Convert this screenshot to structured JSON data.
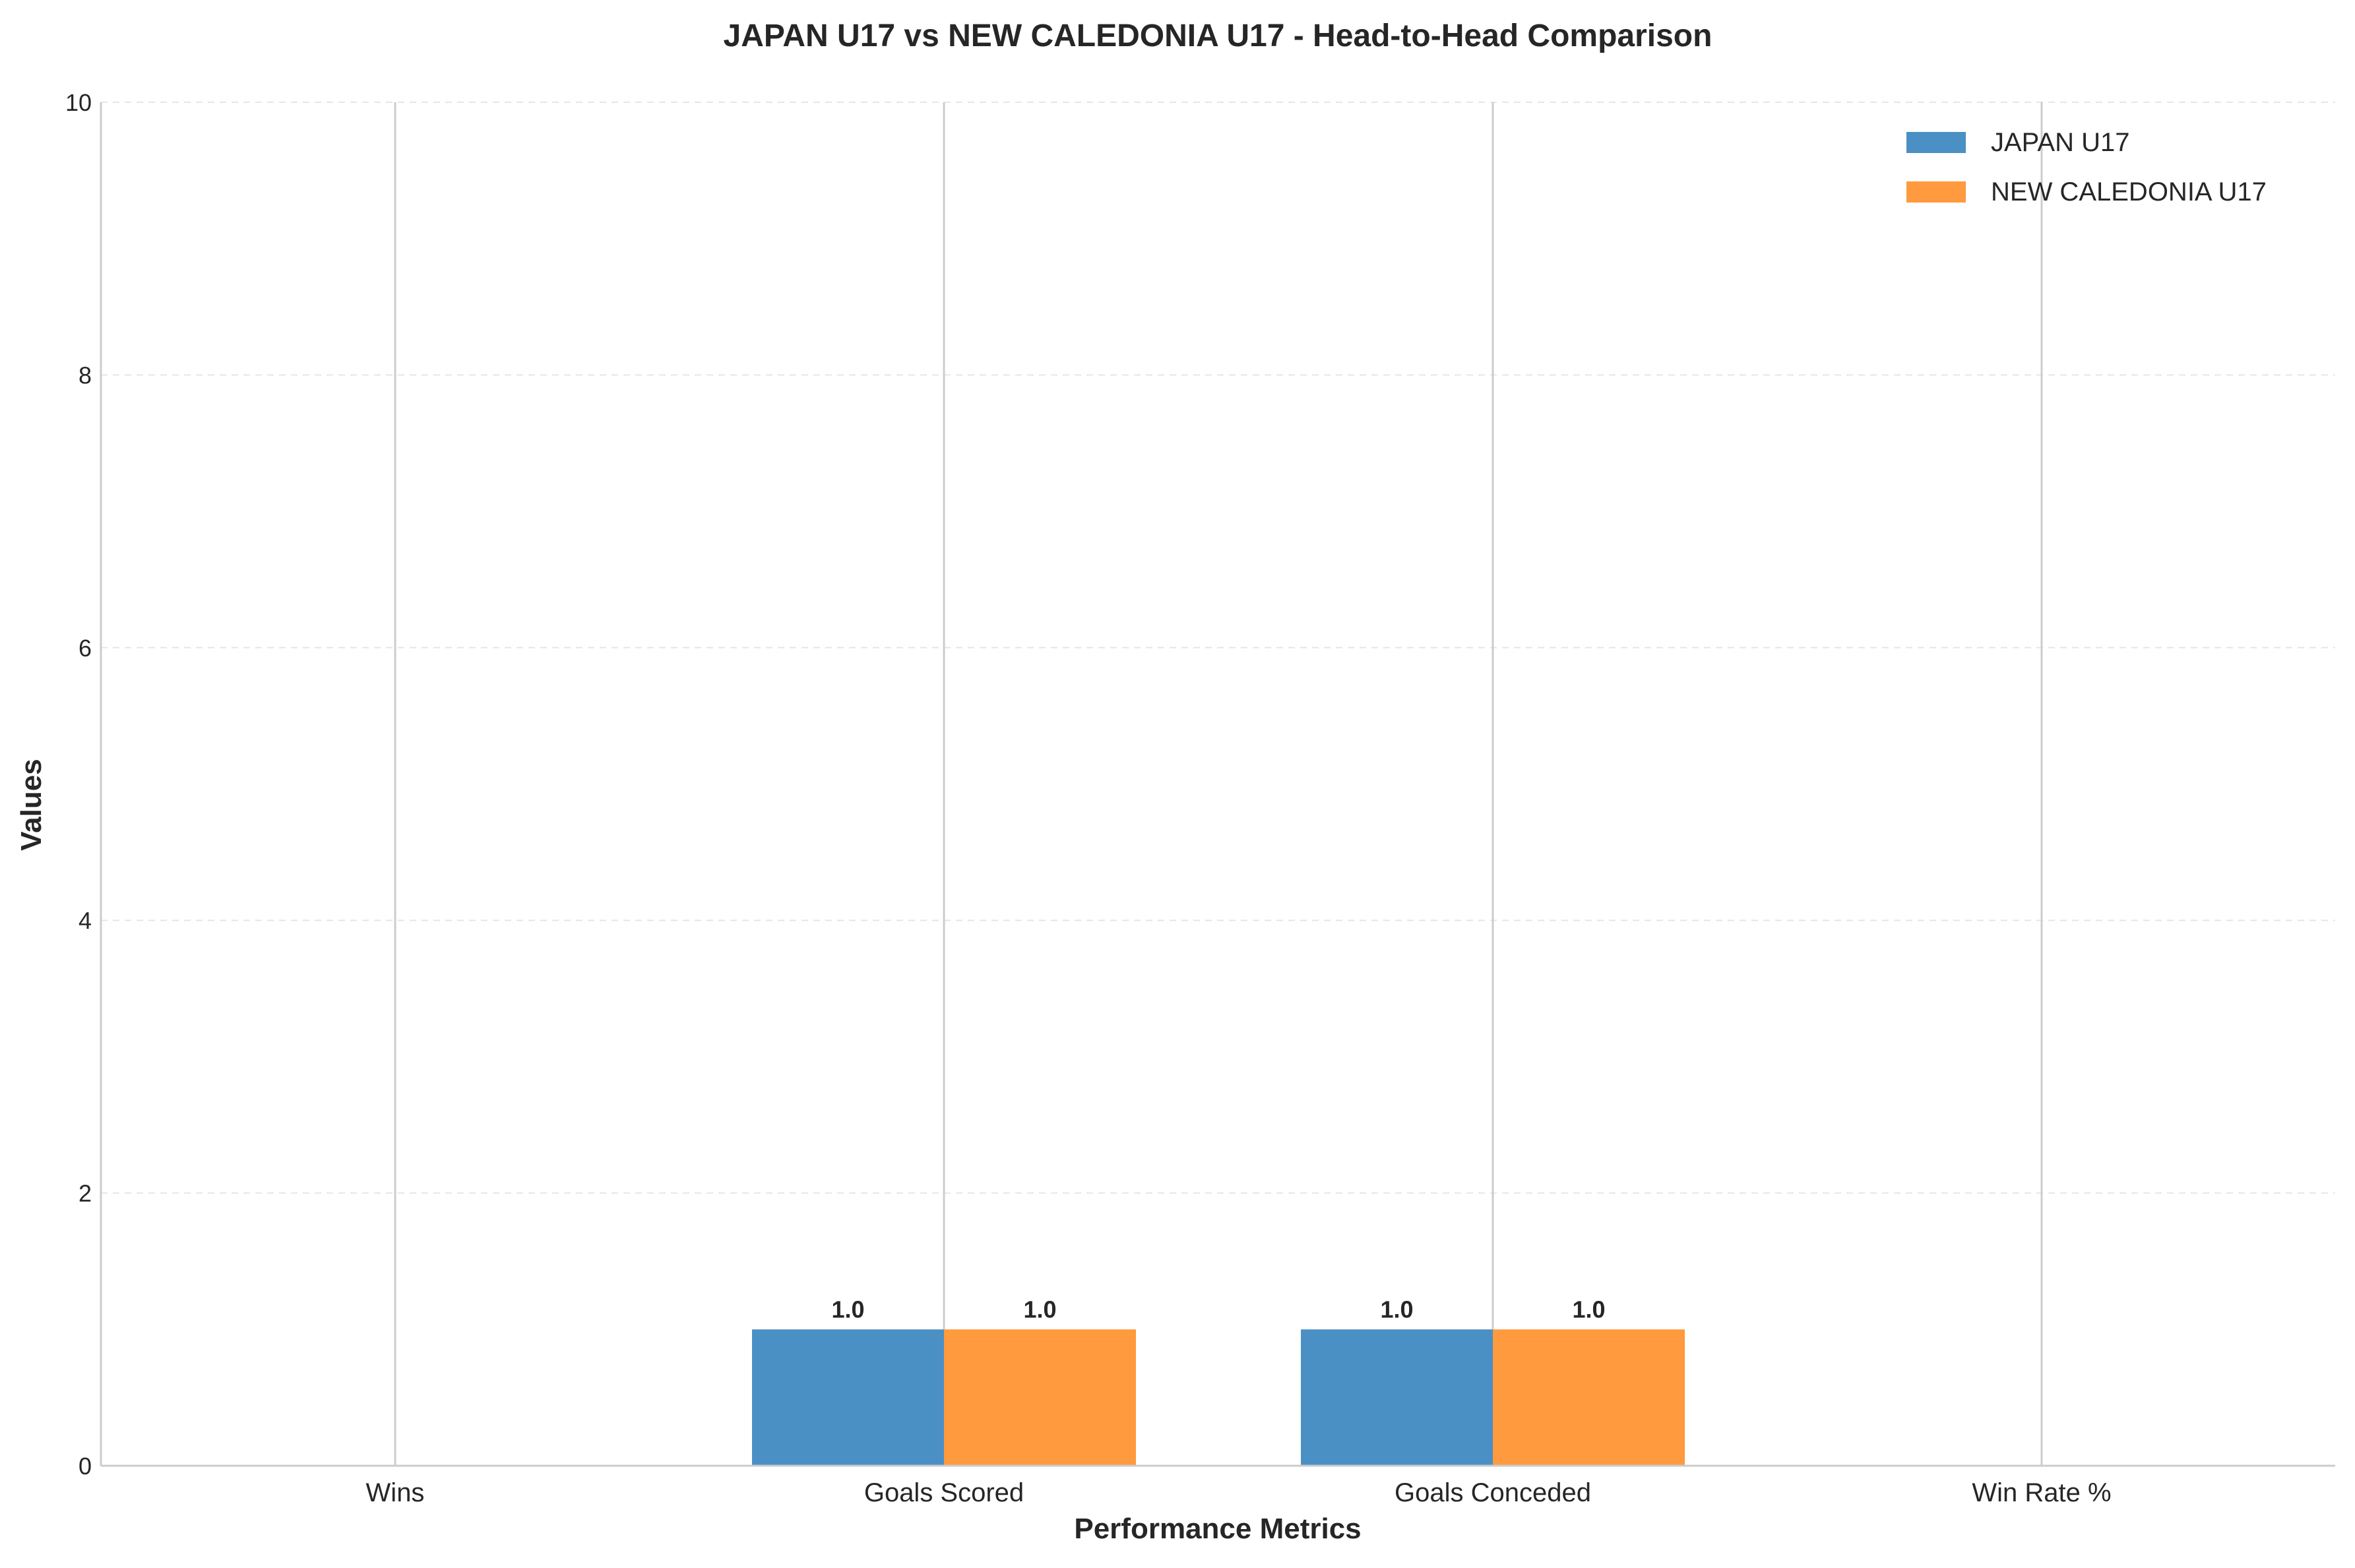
{
  "chart_data": {
    "type": "bar",
    "title": "JAPAN U17 vs NEW CALEDONIA U17 - Head-to-Head Comparison",
    "xlabel": "Performance Metrics",
    "ylabel": "Values",
    "categories": [
      "Wins",
      "Goals Scored",
      "Goals Conceded",
      "Win Rate %"
    ],
    "series": [
      {
        "name": "JAPAN U17",
        "color": "#4a90c4",
        "values": [
          0,
          1.0,
          1.0,
          0
        ]
      },
      {
        "name": "NEW CALEDONIA U17",
        "color": "#ff9a3e",
        "values": [
          0,
          1.0,
          1.0,
          0
        ]
      }
    ],
    "ylim": [
      0,
      10
    ],
    "yticks": [
      "0",
      "2",
      "4",
      "6",
      "8",
      "10"
    ],
    "data_labels": [
      {
        "series": 0,
        "category": 1,
        "text": "1.0"
      },
      {
        "series": 1,
        "category": 1,
        "text": "1.0"
      },
      {
        "series": 0,
        "category": 2,
        "text": "1.0"
      },
      {
        "series": 1,
        "category": 2,
        "text": "1.0"
      }
    ],
    "grid": true,
    "legend_position": "top-right"
  }
}
